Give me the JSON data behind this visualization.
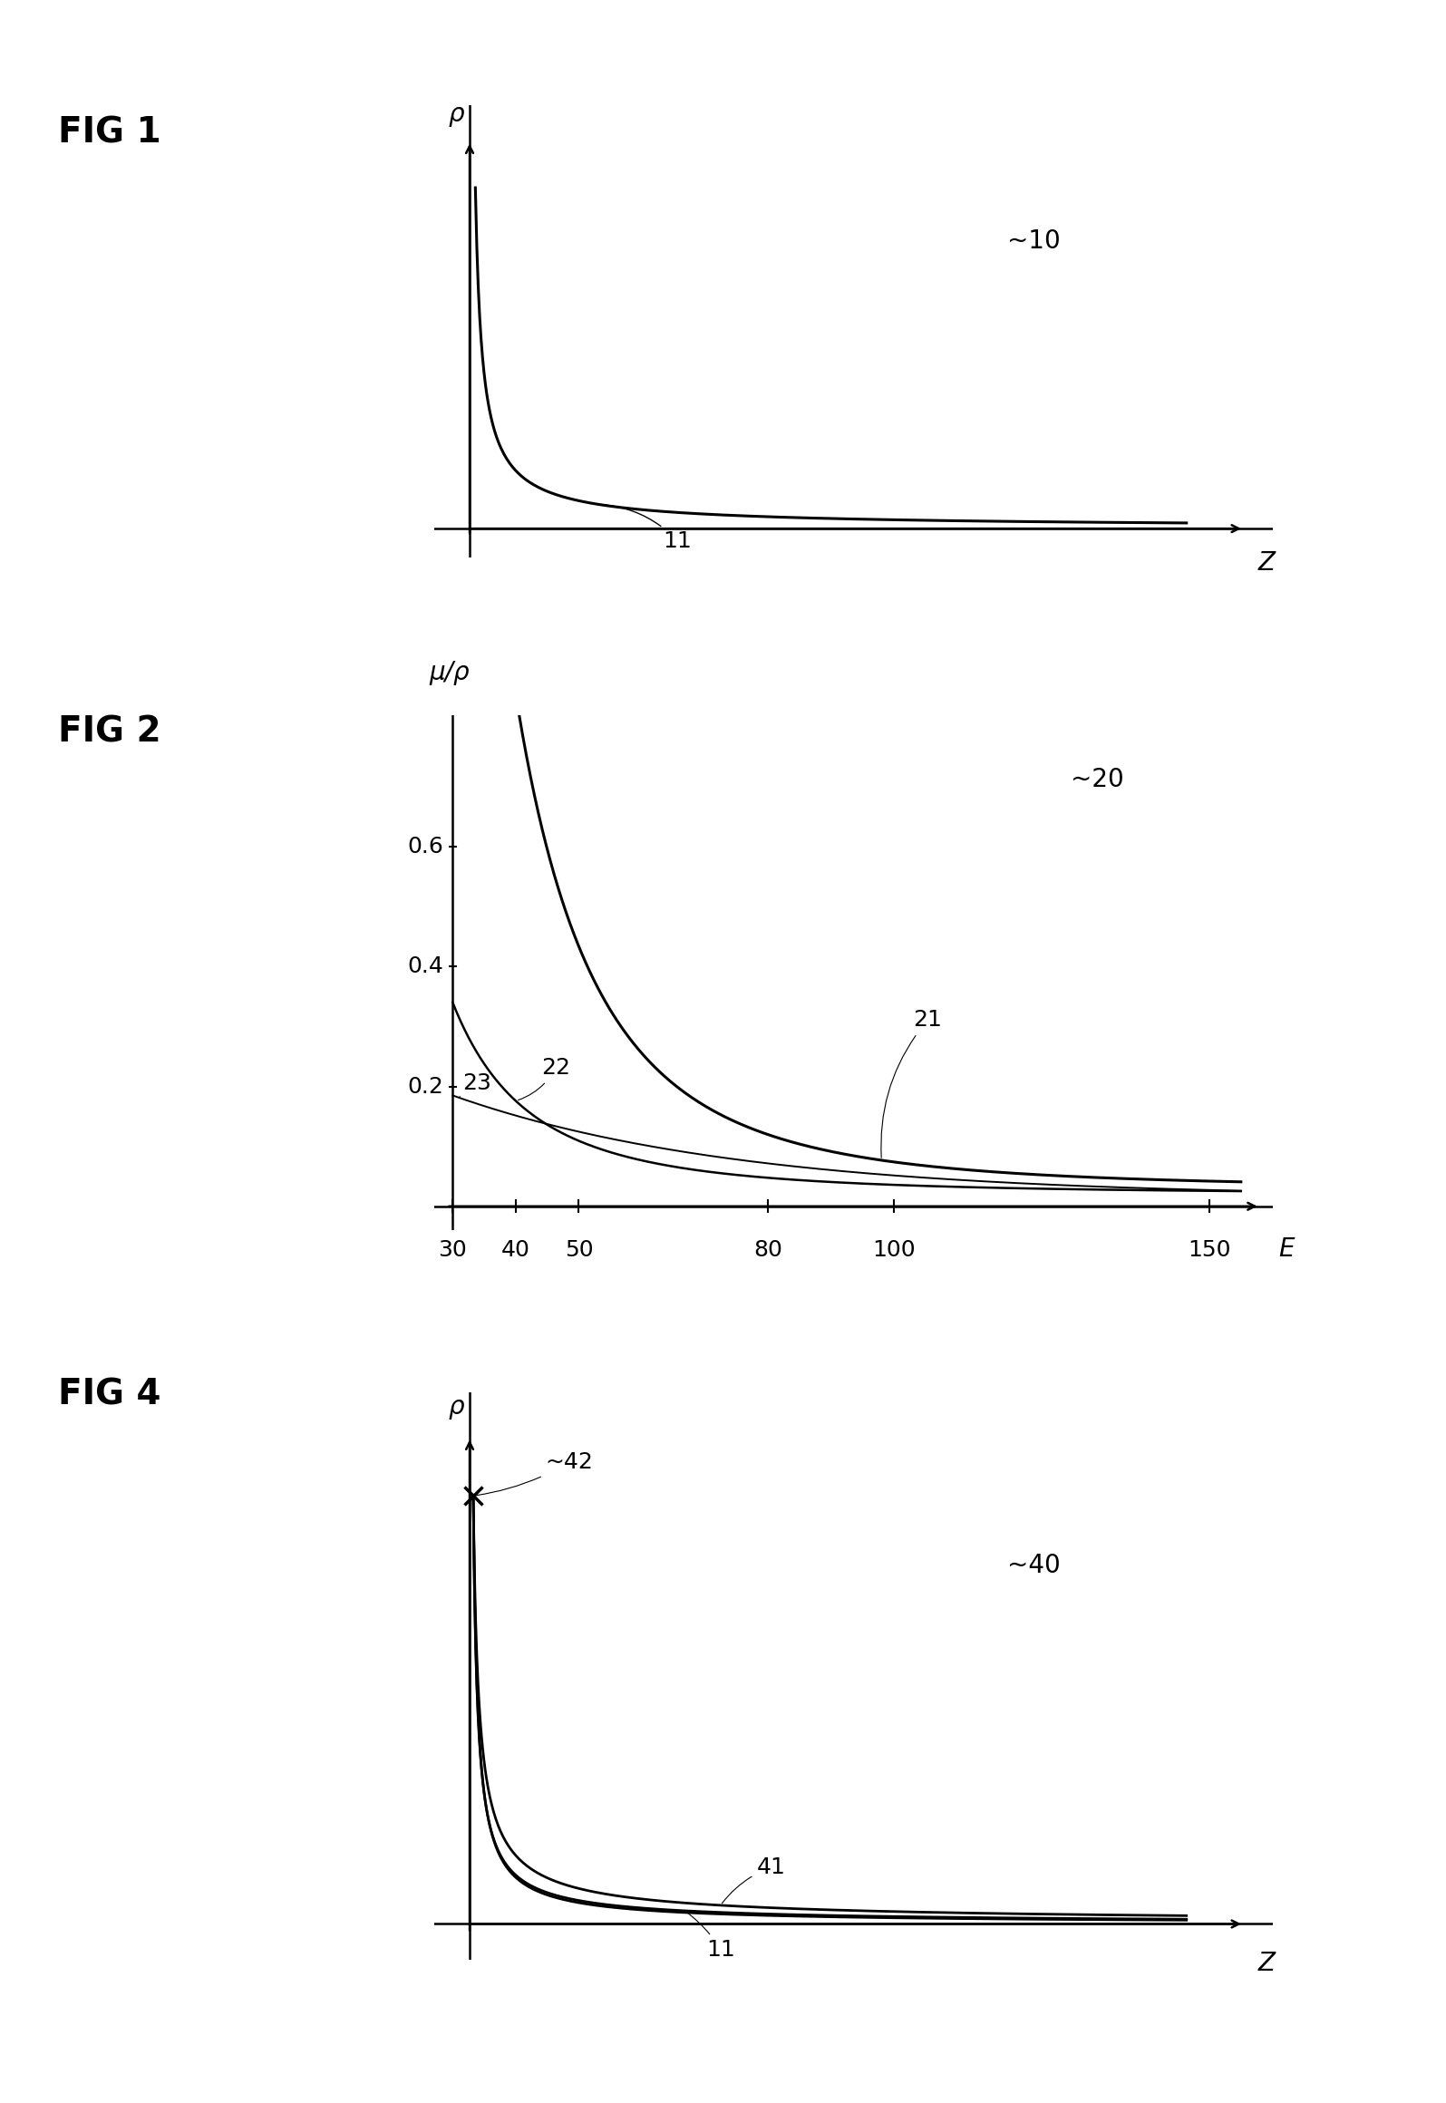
{
  "fig1_label": "FIG 1",
  "fig1_ref": "~10",
  "fig1_curve_label": "11",
  "fig1_ylabel": "ρ",
  "fig1_xlabel": "Z",
  "fig2_label": "FIG 2",
  "fig2_ref": "~20",
  "fig2_ylabel": "μ/ρ",
  "fig2_xlabel": "E",
  "fig2_yticks": [
    0.2,
    0.4,
    0.6
  ],
  "fig2_xticks": [
    30,
    40,
    50,
    80,
    100,
    150
  ],
  "fig2_curve21_label": "21",
  "fig2_curve22_label": "22",
  "fig2_curve23_label": "23",
  "fig4_label": "FIG 4",
  "fig4_ref": "~40",
  "fig4_ylabel": "ρ",
  "fig4_xlabel": "Z",
  "fig4_curve41_label": "41",
  "fig4_curve42_label": "~42",
  "fig4_curve11_label": "11",
  "bg_color": "#ffffff",
  "line_color": "#000000",
  "font_size_figlabel": 28,
  "font_size_axlabel": 20,
  "font_size_tick": 18,
  "font_size_curvelabel": 18,
  "font_size_ref": 20
}
